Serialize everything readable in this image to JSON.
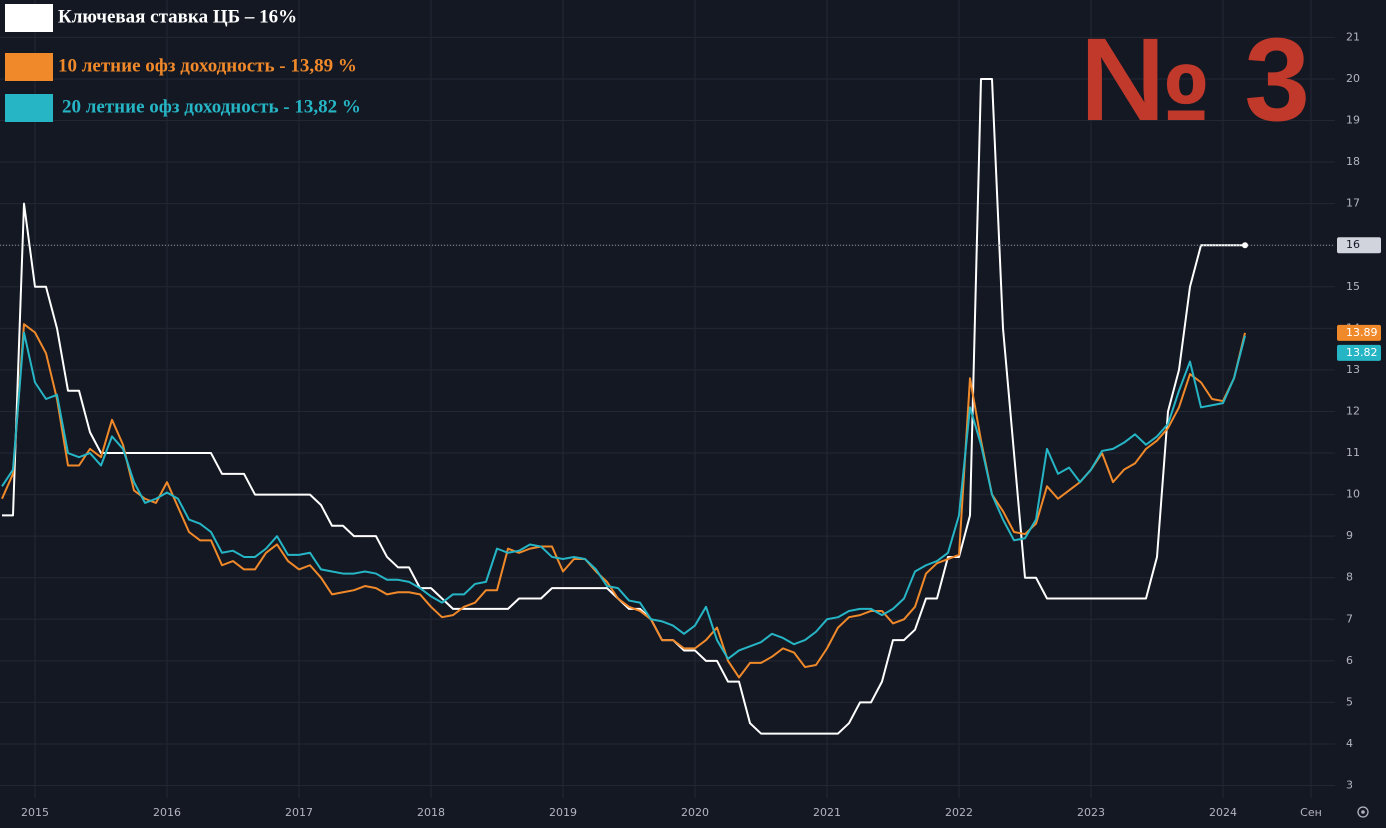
{
  "chart_data": {
    "type": "line",
    "title": "№ 3",
    "categories": [
      null,
      null,
      null,
      "2015",
      null,
      null,
      null,
      null,
      null,
      null,
      null,
      null,
      null,
      null,
      null,
      "2016",
      null,
      null,
      null,
      null,
      null,
      null,
      null,
      null,
      null,
      null,
      null,
      "2017",
      null,
      null,
      null,
      null,
      null,
      null,
      null,
      null,
      null,
      null,
      null,
      "2018",
      null,
      null,
      null,
      null,
      null,
      null,
      null,
      null,
      null,
      null,
      null,
      "2019",
      null,
      null,
      null,
      null,
      null,
      null,
      null,
      null,
      null,
      null,
      null,
      "2020",
      null,
      null,
      null,
      null,
      null,
      null,
      null,
      null,
      null,
      null,
      null,
      "2021",
      null,
      null,
      null,
      null,
      null,
      null,
      null,
      null,
      null,
      null,
      null,
      "2022",
      null,
      null,
      null,
      null,
      null,
      null,
      null,
      null,
      null,
      null,
      null,
      "2023",
      null,
      null,
      null,
      null,
      null,
      null,
      null,
      null,
      null,
      null,
      null,
      "2024",
      null,
      null,
      null,
      null,
      null,
      null,
      null,
      "Сен"
    ],
    "series": [
      {
        "name": "Ключевая ставка ЦБ – 16%",
        "color": "#ffffff",
        "values": [
          9.5,
          9.5,
          17,
          15,
          15,
          14,
          12.5,
          12.5,
          11.5,
          11,
          11,
          11,
          11,
          11,
          11,
          11,
          11,
          11,
          11,
          11,
          10.5,
          10.5,
          10.5,
          10,
          10,
          10,
          10,
          10,
          10,
          9.75,
          9.25,
          9.25,
          9,
          9,
          9,
          8.5,
          8.25,
          8.25,
          7.75,
          7.75,
          7.5,
          7.25,
          7.25,
          7.25,
          7.25,
          7.25,
          7.25,
          7.5,
          7.5,
          7.5,
          7.75,
          7.75,
          7.75,
          7.75,
          7.75,
          7.75,
          7.5,
          7.25,
          7.25,
          7,
          6.5,
          6.5,
          6.25,
          6.25,
          6,
          6,
          5.5,
          5.5,
          4.5,
          4.25,
          4.25,
          4.25,
          4.25,
          4.25,
          4.25,
          4.25,
          4.25,
          4.5,
          5,
          5,
          5.5,
          6.5,
          6.5,
          6.75,
          7.5,
          7.5,
          8.5,
          8.5,
          9.5,
          20,
          20,
          14,
          11,
          8,
          8,
          7.5,
          7.5,
          7.5,
          7.5,
          7.5,
          7.5,
          7.5,
          7.5,
          7.5,
          7.5,
          8.5,
          12,
          13,
          15,
          16,
          16,
          16,
          16,
          16,
          null,
          null,
          null,
          null,
          null,
          null
        ]
      },
      {
        "name": "10 летние офз доходность - 13,89 %",
        "color": "#f0892a",
        "values": [
          9.9,
          10.5,
          14.1,
          13.9,
          13.4,
          12.3,
          10.7,
          10.7,
          11.1,
          10.9,
          11.8,
          11.2,
          10.1,
          9.9,
          9.8,
          10.3,
          9.7,
          9.1,
          8.9,
          8.9,
          8.3,
          8.4,
          8.2,
          8.2,
          8.6,
          8.8,
          8.4,
          8.2,
          8.3,
          8.0,
          7.6,
          7.65,
          7.7,
          7.8,
          7.75,
          7.6,
          7.65,
          7.65,
          7.6,
          7.3,
          7.05,
          7.1,
          7.3,
          7.4,
          7.7,
          7.7,
          8.7,
          8.6,
          8.7,
          8.75,
          8.75,
          8.15,
          8.45,
          8.45,
          8.15,
          7.9,
          7.5,
          7.3,
          7.2,
          7.0,
          6.5,
          6.5,
          6.3,
          6.3,
          6.5,
          6.8,
          6.0,
          5.6,
          5.95,
          5.95,
          6.1,
          6.3,
          6.2,
          5.85,
          5.9,
          6.3,
          6.8,
          7.05,
          7.1,
          7.2,
          7.2,
          6.9,
          7.0,
          7.3,
          8.1,
          8.35,
          8.45,
          8.55,
          12.8,
          11.3,
          10.0,
          9.6,
          9.1,
          9.05,
          9.3,
          10.2,
          9.9,
          10.1,
          10.3,
          10.6,
          11.0,
          10.3,
          10.6,
          10.75,
          11.1,
          11.3,
          11.6,
          12.1,
          12.9,
          12.7,
          12.3,
          12.25,
          12.8,
          13.89,
          null,
          null,
          null,
          null,
          null,
          null
        ]
      },
      {
        "name": "20 летние офз доходность - 13,82 %",
        "color": "#26b5c5",
        "values": [
          10.2,
          10.6,
          13.9,
          12.7,
          12.3,
          12.4,
          11.0,
          10.9,
          11.0,
          10.7,
          11.4,
          11.1,
          10.3,
          9.8,
          9.9,
          10.05,
          9.9,
          9.4,
          9.3,
          9.1,
          8.6,
          8.65,
          8.5,
          8.5,
          8.7,
          9.0,
          8.55,
          8.55,
          8.6,
          8.2,
          8.15,
          8.1,
          8.1,
          8.15,
          8.1,
          7.95,
          7.95,
          7.9,
          7.75,
          7.55,
          7.4,
          7.6,
          7.6,
          7.85,
          7.9,
          8.7,
          8.6,
          8.65,
          8.8,
          8.75,
          8.5,
          8.45,
          8.5,
          8.45,
          8.2,
          7.8,
          7.75,
          7.45,
          7.4,
          7.0,
          6.95,
          6.85,
          6.65,
          6.85,
          7.3,
          6.5,
          6.05,
          6.25,
          6.35,
          6.45,
          6.65,
          6.55,
          6.4,
          6.5,
          6.7,
          7.0,
          7.05,
          7.2,
          7.25,
          7.25,
          7.1,
          7.25,
          7.5,
          8.15,
          8.3,
          8.4,
          8.6,
          9.5,
          12.1,
          11.2,
          10.0,
          9.4,
          8.9,
          8.95,
          9.4,
          11.1,
          10.5,
          10.65,
          10.3,
          10.6,
          11.05,
          11.1,
          11.25,
          11.45,
          11.2,
          11.4,
          11.7,
          12.5,
          13.2,
          12.1,
          12.15,
          12.2,
          12.8,
          13.82,
          null,
          null,
          null,
          null,
          null,
          null
        ]
      }
    ],
    "ylim": [
      2.7,
      21.9
    ],
    "yticks": [
      3,
      4,
      5,
      6,
      7,
      8,
      9,
      10,
      11,
      12,
      13,
      14,
      15,
      16,
      17,
      18,
      19,
      20,
      21
    ],
    "grid": true
  }
}
